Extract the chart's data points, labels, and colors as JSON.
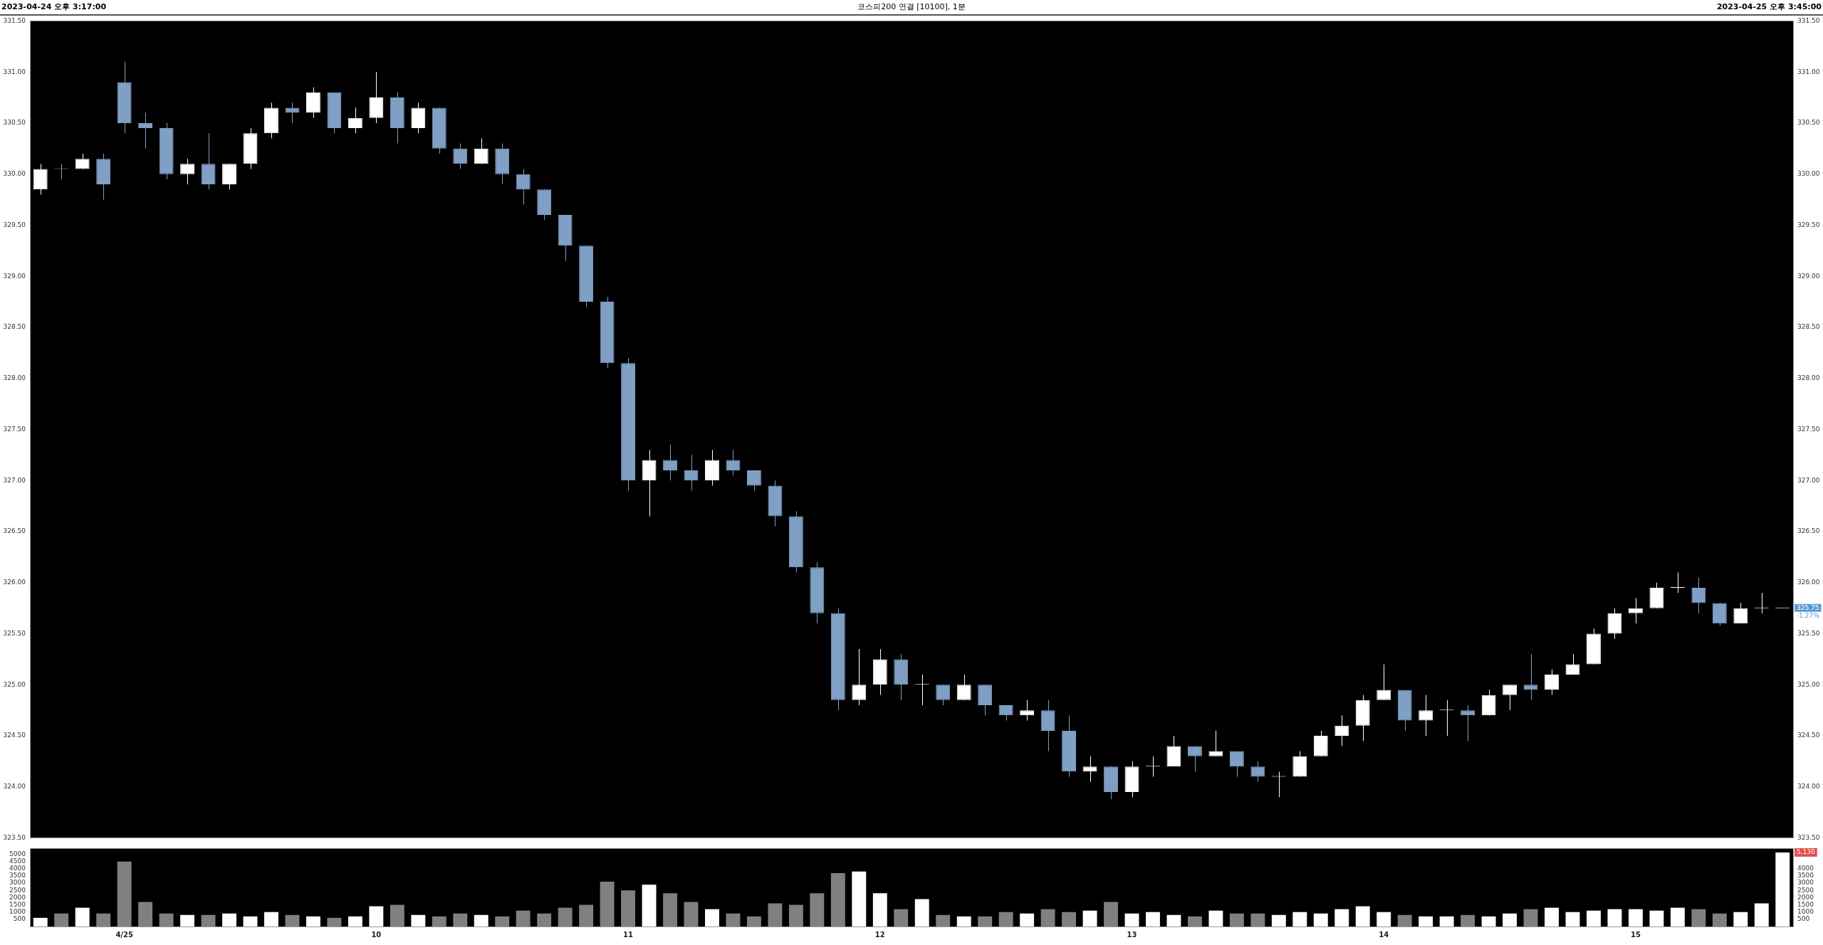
{
  "chart_data": [
    {
      "type": "candlestick",
      "title": "코스피200 연결 [10100], 1분",
      "annotations": [
        "2023-04-24 오후 3:17:00",
        "2023-04-25 오후 3:45:00",
        {
          "text": "325.75",
          "y": 325.75
        },
        "-1.27%"
      ],
      "ohlc": [
        [
          329.85,
          330.1,
          329.8,
          330.05
        ],
        [
          330.05,
          330.1,
          329.95,
          330.05
        ],
        [
          330.05,
          330.2,
          330.05,
          330.15
        ],
        [
          330.15,
          330.2,
          329.75,
          329.9
        ],
        [
          330.9,
          331.1,
          330.4,
          330.5
        ],
        [
          330.5,
          330.6,
          330.25,
          330.45
        ],
        [
          330.45,
          330.5,
          329.95,
          330.0
        ],
        [
          330.0,
          330.15,
          329.9,
          330.1
        ],
        [
          330.1,
          330.4,
          329.85,
          329.9
        ],
        [
          329.9,
          330.1,
          329.85,
          330.1
        ],
        [
          330.1,
          330.45,
          330.05,
          330.4
        ],
        [
          330.4,
          330.7,
          330.35,
          330.65
        ],
        [
          330.65,
          330.7,
          330.5,
          330.6
        ],
        [
          330.6,
          330.85,
          330.55,
          330.8
        ],
        [
          330.8,
          330.8,
          330.4,
          330.45
        ],
        [
          330.45,
          330.65,
          330.4,
          330.55
        ],
        [
          330.55,
          331.0,
          330.5,
          330.75
        ],
        [
          330.75,
          330.8,
          330.3,
          330.45
        ],
        [
          330.45,
          330.7,
          330.4,
          330.65
        ],
        [
          330.65,
          330.65,
          330.2,
          330.25
        ],
        [
          330.25,
          330.3,
          330.05,
          330.1
        ],
        [
          330.1,
          330.35,
          330.1,
          330.25
        ],
        [
          330.25,
          330.3,
          329.9,
          330.0
        ],
        [
          330.0,
          330.05,
          329.7,
          329.85
        ],
        [
          329.85,
          329.85,
          329.55,
          329.6
        ],
        [
          329.6,
          329.6,
          329.15,
          329.3
        ],
        [
          329.3,
          329.3,
          328.7,
          328.75
        ],
        [
          328.75,
          328.8,
          328.1,
          328.15
        ],
        [
          328.15,
          328.2,
          326.9,
          327.0
        ],
        [
          327.0,
          327.3,
          326.65,
          327.2
        ],
        [
          327.2,
          327.35,
          327.0,
          327.1
        ],
        [
          327.1,
          327.25,
          326.9,
          327.0
        ],
        [
          327.0,
          327.3,
          326.95,
          327.2
        ],
        [
          327.2,
          327.3,
          327.05,
          327.1
        ],
        [
          327.1,
          327.1,
          326.9,
          326.95
        ],
        [
          326.95,
          327.0,
          326.55,
          326.65
        ],
        [
          326.65,
          326.7,
          326.1,
          326.15
        ],
        [
          326.15,
          326.2,
          325.6,
          325.7
        ],
        [
          325.7,
          325.75,
          324.75,
          324.85
        ],
        [
          324.85,
          325.35,
          324.8,
          325.0
        ],
        [
          325.0,
          325.35,
          324.9,
          325.25
        ],
        [
          325.25,
          325.3,
          324.85,
          325.0
        ],
        [
          325.0,
          325.1,
          324.8,
          325.0
        ],
        [
          325.0,
          325.0,
          324.8,
          324.85
        ],
        [
          324.85,
          325.1,
          324.85,
          325.0
        ],
        [
          325.0,
          325.0,
          324.7,
          324.8
        ],
        [
          324.8,
          324.8,
          324.65,
          324.7
        ],
        [
          324.7,
          324.85,
          324.65,
          324.75
        ],
        [
          324.75,
          324.85,
          324.35,
          324.55
        ],
        [
          324.55,
          324.7,
          324.1,
          324.15
        ],
        [
          324.15,
          324.3,
          324.05,
          324.2
        ],
        [
          324.2,
          324.2,
          323.88,
          323.95
        ],
        [
          323.95,
          324.25,
          323.9,
          324.2
        ],
        [
          324.2,
          324.3,
          324.1,
          324.2
        ],
        [
          324.2,
          324.5,
          324.2,
          324.4
        ],
        [
          324.4,
          324.4,
          324.15,
          324.3
        ],
        [
          324.3,
          324.55,
          324.3,
          324.35
        ],
        [
          324.35,
          324.35,
          324.1,
          324.2
        ],
        [
          324.2,
          324.25,
          324.05,
          324.1
        ],
        [
          324.1,
          324.15,
          323.9,
          324.1
        ],
        [
          324.1,
          324.35,
          324.1,
          324.3
        ],
        [
          324.3,
          324.55,
          324.3,
          324.5
        ],
        [
          324.5,
          324.7,
          324.4,
          324.6
        ],
        [
          324.6,
          324.9,
          324.45,
          324.85
        ],
        [
          324.85,
          325.2,
          324.85,
          324.95
        ],
        [
          324.95,
          324.95,
          324.55,
          324.65
        ],
        [
          324.65,
          324.9,
          324.5,
          324.75
        ],
        [
          324.75,
          324.85,
          324.5,
          324.75
        ],
        [
          324.75,
          324.8,
          324.45,
          324.7
        ],
        [
          324.7,
          324.95,
          324.7,
          324.9
        ],
        [
          324.9,
          325.0,
          324.75,
          325.0
        ],
        [
          325.0,
          325.3,
          324.85,
          324.95
        ],
        [
          324.95,
          325.15,
          324.9,
          325.1
        ],
        [
          325.1,
          325.3,
          325.1,
          325.2
        ],
        [
          325.2,
          325.55,
          325.2,
          325.5
        ],
        [
          325.5,
          325.75,
          325.45,
          325.7
        ],
        [
          325.7,
          325.85,
          325.6,
          325.75
        ],
        [
          325.75,
          326.0,
          325.75,
          325.95
        ],
        [
          325.95,
          326.1,
          325.9,
          325.95
        ],
        [
          325.95,
          326.05,
          325.7,
          325.8
        ],
        [
          325.8,
          325.8,
          325.58,
          325.6
        ],
        [
          325.6,
          325.8,
          325.6,
          325.75
        ],
        [
          325.75,
          325.9,
          325.7,
          325.75
        ],
        [
          325.75,
          325.75,
          325.75,
          325.75
        ]
      ],
      "colors": [
        "#ffffff",
        "#7f9fc4",
        "#ffffff",
        "#7f9fc4",
        "#7f9fc4",
        "#7f9fc4",
        "#7f9fc4",
        "#ffffff",
        "#7f9fc4",
        "#ffffff",
        "#ffffff",
        "#ffffff",
        "#7f9fc4",
        "#ffffff",
        "#7f9fc4",
        "#ffffff",
        "#ffffff",
        "#7f9fc4",
        "#ffffff",
        "#7f9fc4",
        "#7f9fc4",
        "#ffffff",
        "#7f9fc4",
        "#7f9fc4",
        "#7f9fc4",
        "#7f9fc4",
        "#7f9fc4",
        "#7f9fc4",
        "#7f9fc4",
        "#ffffff",
        "#7f9fc4",
        "#7f9fc4",
        "#ffffff",
        "#7f9fc4",
        "#7f9fc4",
        "#7f9fc4",
        "#7f9fc4",
        "#7f9fc4",
        "#7f9fc4",
        "#ffffff",
        "#ffffff",
        "#7f9fc4",
        "#ffffff",
        "#7f9fc4",
        "#ffffff",
        "#7f9fc4",
        "#7f9fc4",
        "#ffffff",
        "#7f9fc4",
        "#7f9fc4",
        "#ffffff",
        "#7f9fc4",
        "#ffffff",
        "#ffffff",
        "#ffffff",
        "#7f9fc4",
        "#ffffff",
        "#7f9fc4",
        "#7f9fc4",
        "#ffffff",
        "#ffffff",
        "#ffffff",
        "#ffffff",
        "#ffffff",
        "#ffffff",
        "#7f9fc4",
        "#ffffff",
        "#ffffff",
        "#7f9fc4",
        "#ffffff",
        "#ffffff",
        "#7f9fc4",
        "#ffffff",
        "#ffffff",
        "#ffffff",
        "#ffffff",
        "#ffffff",
        "#ffffff",
        "#ffffff",
        "#7f9fc4",
        "#7f9fc4",
        "#ffffff",
        "#ffffff",
        "#ffffff"
      ],
      "ylim": [
        323.5,
        331.5
      ],
      "yticks": [
        {
          "value": 323.5,
          "label": "323.50"
        },
        {
          "value": 324,
          "label": "324.00"
        },
        {
          "value": 324.5,
          "label": "324.50"
        },
        {
          "value": 325,
          "label": "325.00"
        },
        {
          "value": 325.5,
          "label": "325.50"
        },
        {
          "value": 326,
          "label": "326.00"
        },
        {
          "value": 326.5,
          "label": "326.50"
        },
        {
          "value": 327,
          "label": "327.00"
        },
        {
          "value": 327.5,
          "label": "327.50"
        },
        {
          "value": 328,
          "label": "328.00"
        },
        {
          "value": 328.5,
          "label": "328.50"
        },
        {
          "value": 329,
          "label": "329.00"
        },
        {
          "value": 329.5,
          "label": "329.50"
        },
        {
          "value": 330,
          "label": "330.00"
        },
        {
          "value": 330.5,
          "label": "330.50"
        },
        {
          "value": 331,
          "label": "331.00"
        },
        {
          "value": 331.5,
          "label": "331.50"
        }
      ],
      "y2lim": [
        323.5,
        331.5
      ],
      "y2ticks": [
        {
          "value": 323.5,
          "label": "323.50"
        },
        {
          "value": 324,
          "label": "324.00"
        },
        {
          "value": 324.5,
          "label": "324.50"
        },
        {
          "value": 325,
          "label": "325.00"
        },
        {
          "value": 325.5,
          "label": "325.50"
        },
        {
          "value": 326,
          "label": "326.00"
        },
        {
          "value": 326.5,
          "label": "326.50"
        },
        {
          "value": 327,
          "label": "327.00"
        },
        {
          "value": 327.5,
          "label": "327.50"
        },
        {
          "value": 328,
          "label": "328.00"
        },
        {
          "value": 328.5,
          "label": "328.50"
        },
        {
          "value": 329,
          "label": "329.00"
        },
        {
          "value": 329.5,
          "label": "329.50"
        },
        {
          "value": 330,
          "label": "330.00"
        },
        {
          "value": 330.5,
          "label": "330.50"
        },
        {
          "value": 331,
          "label": "331.00"
        },
        {
          "value": 331.5,
          "label": "331.50"
        }
      ],
      "tick_labels": "y"
    },
    {
      "type": "bar",
      "annotations": [
        {
          "text": "5,130",
          "y": 5130
        }
      ],
      "categories": [
        null,
        null,
        null,
        null,
        "4/25",
        null,
        null,
        null,
        null,
        null,
        null,
        null,
        null,
        null,
        null,
        null,
        "10",
        null,
        null,
        null,
        null,
        null,
        null,
        null,
        null,
        null,
        null,
        null,
        "11",
        null,
        null,
        null,
        null,
        null,
        null,
        null,
        null,
        null,
        null,
        null,
        "12",
        null,
        null,
        null,
        null,
        null,
        null,
        null,
        null,
        null,
        null,
        null,
        "13",
        null,
        null,
        null,
        null,
        null,
        null,
        null,
        null,
        null,
        null,
        null,
        "14",
        null,
        null,
        null,
        null,
        null,
        null,
        null,
        null,
        null,
        null,
        null,
        "15",
        null,
        null,
        null,
        null,
        null,
        null,
        null
      ],
      "values": [
        600,
        900,
        1300,
        900,
        4500,
        1700,
        900,
        800,
        800,
        900,
        700,
        1000,
        800,
        700,
        600,
        700,
        1400,
        1500,
        800,
        700,
        900,
        800,
        700,
        1100,
        900,
        1300,
        1500,
        3100,
        2500,
        2900,
        2300,
        1700,
        1200,
        900,
        700,
        1600,
        1500,
        2300,
        3700,
        3800,
        2300,
        1200,
        1900,
        800,
        700,
        700,
        1000,
        900,
        1200,
        1000,
        1100,
        1700,
        900,
        1000,
        800,
        700,
        1100,
        900,
        900,
        800,
        1000,
        900,
        1200,
        1400,
        1000,
        800,
        700,
        700,
        800,
        700,
        900,
        1200,
        1300,
        1000,
        1100,
        1200,
        1200,
        1100,
        1300,
        1200,
        900,
        1000,
        1600,
        5130
      ],
      "colors": [
        "#ffffff",
        "#808080",
        "#ffffff",
        "#808080",
        "#808080",
        "#808080",
        "#808080",
        "#ffffff",
        "#808080",
        "#ffffff",
        "#ffffff",
        "#ffffff",
        "#808080",
        "#ffffff",
        "#808080",
        "#ffffff",
        "#ffffff",
        "#808080",
        "#ffffff",
        "#808080",
        "#808080",
        "#ffffff",
        "#808080",
        "#808080",
        "#808080",
        "#808080",
        "#808080",
        "#808080",
        "#808080",
        "#ffffff",
        "#808080",
        "#808080",
        "#ffffff",
        "#808080",
        "#808080",
        "#808080",
        "#808080",
        "#808080",
        "#808080",
        "#ffffff",
        "#ffffff",
        "#808080",
        "#ffffff",
        "#808080",
        "#ffffff",
        "#808080",
        "#808080",
        "#ffffff",
        "#808080",
        "#808080",
        "#ffffff",
        "#808080",
        "#ffffff",
        "#ffffff",
        "#ffffff",
        "#808080",
        "#ffffff",
        "#808080",
        "#808080",
        "#ffffff",
        "#ffffff",
        "#ffffff",
        "#ffffff",
        "#ffffff",
        "#ffffff",
        "#808080",
        "#ffffff",
        "#ffffff",
        "#808080",
        "#ffffff",
        "#ffffff",
        "#808080",
        "#ffffff",
        "#ffffff",
        "#ffffff",
        "#ffffff",
        "#ffffff",
        "#ffffff",
        "#ffffff",
        "#808080",
        "#808080",
        "#ffffff",
        "#ffffff",
        "#ffffff"
      ],
      "ylim": [
        0,
        5400
      ],
      "yticks": [
        500,
        1000,
        1500,
        2000,
        2500,
        3000,
        3500,
        4000,
        4500,
        5000
      ],
      "y2lim": [
        0,
        5400
      ],
      "y2ticks": [
        500,
        1000,
        1500,
        2000,
        2500,
        3000,
        3500,
        4000
      ]
    }
  ]
}
